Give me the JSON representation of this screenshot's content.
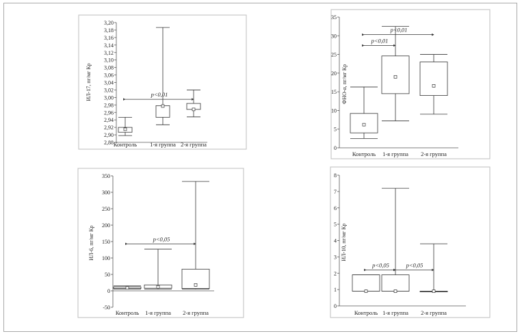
{
  "chart_data": [
    {
      "type": "box",
      "ylabel": "ИЛ-17, пг/мг Кр",
      "yticks": [
        "3,20",
        "3,18",
        "3,16",
        "3,14",
        "3,12",
        "3,10",
        "3,08",
        "3,06",
        "3,04",
        "3,02",
        "3,00",
        "2,98",
        "2,96",
        "2,94",
        "2,92",
        "2,90",
        "2,88"
      ],
      "ylim": [
        2.88,
        3.2
      ],
      "categories": [
        "Контроль",
        "1-я группа",
        "2-я группа"
      ],
      "boxes": [
        {
          "min": 2.898,
          "q1": 2.907,
          "median": 2.915,
          "q3": 2.92,
          "max": 2.947
        },
        {
          "min": 2.927,
          "q1": 2.947,
          "median": 2.977,
          "q3": 2.978,
          "max": 3.187
        },
        {
          "min": 2.948,
          "q1": 2.968,
          "median": 2.968,
          "q3": 2.984,
          "max": 3.02
        }
      ],
      "annotations": [
        {
          "text": "p<0,01",
          "from": 0,
          "to": 2,
          "y": 2.995
        }
      ]
    },
    {
      "type": "box",
      "ylabel": "ФНО-α, пг/мг Кр",
      "yticks": [
        "35",
        "30",
        "25",
        "20",
        "15",
        "10",
        "5",
        "0"
      ],
      "ylim": [
        0,
        35
      ],
      "categories": [
        "Контроль",
        "1-я группа",
        "2-я группа"
      ],
      "boxes": [
        {
          "min": 2.5,
          "q1": 4.0,
          "median": 6.2,
          "q3": 9.2,
          "max": 16.3
        },
        {
          "min": 7.2,
          "q1": 14.5,
          "median": 19.0,
          "q3": 24.6,
          "max": 32.5
        },
        {
          "min": 9.0,
          "q1": 14.0,
          "median": 16.6,
          "q3": 23.0,
          "max": 25.0
        }
      ],
      "annotations": [
        {
          "text": "p<0,01",
          "from": 0,
          "to": 2,
          "y": 30.3
        },
        {
          "text": "p<0,01",
          "from": 0,
          "to": 1,
          "y": 27.4
        }
      ]
    },
    {
      "type": "box",
      "ylabel": "ИЛ-6, пг/мг Кр",
      "yticks": [
        "350",
        "300",
        "250",
        "200",
        "150",
        "100",
        "50",
        "0",
        "-50"
      ],
      "ylim": [
        -50,
        350
      ],
      "categories": [
        "Контроль",
        "1-я группа",
        "2-я группа"
      ],
      "boxes": [
        {
          "min": 5,
          "q1": 7,
          "median": 9,
          "q3": 12,
          "max": 15
        },
        {
          "min": 5,
          "q1": 8,
          "median": 12,
          "q3": 18,
          "max": 127
        },
        {
          "min": 5,
          "q1": 7,
          "median": 18,
          "q3": 66,
          "max": 333
        }
      ],
      "annotations": [
        {
          "text": "p<0,05",
          "from": 0,
          "to": 2,
          "y": 143
        }
      ]
    },
    {
      "type": "box",
      "ylabel": "ИЛ-10, пг/мг Кр",
      "yticks": [
        "8",
        "7",
        "6",
        "5",
        "4",
        "3",
        "2",
        "1",
        "0"
      ],
      "ylim": [
        0,
        8
      ],
      "categories": [
        "Контроль",
        "1-я группа",
        "2-я группа"
      ],
      "boxes": [
        {
          "min": 0.9,
          "q1": 0.9,
          "median": 0.9,
          "q3": 1.9,
          "max": 1.9
        },
        {
          "min": 0.9,
          "q1": 0.9,
          "median": 0.9,
          "q3": 1.9,
          "max": 7.2
        },
        {
          "min": 0.9,
          "q1": 0.9,
          "median": 0.9,
          "q3": 0.9,
          "max": 3.8
        }
      ],
      "annotations": [
        {
          "text": "p<0,05",
          "from": 0,
          "to": 1,
          "y": 2.2
        },
        {
          "text": "p<0,05",
          "from": 1,
          "to": 2,
          "y": 2.2
        }
      ]
    }
  ]
}
